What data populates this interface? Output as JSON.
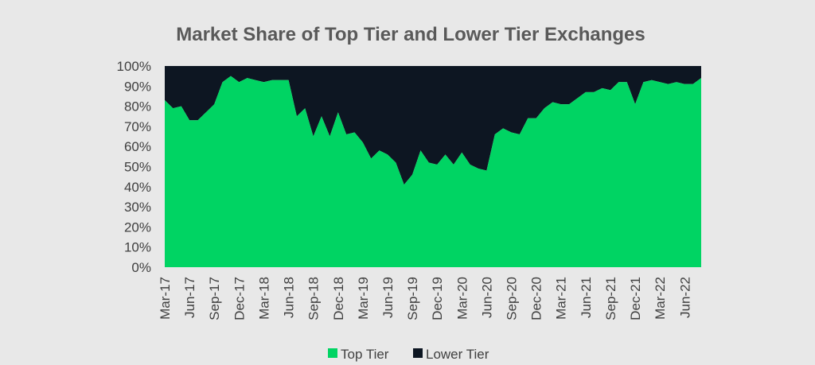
{
  "chart_data": {
    "type": "area",
    "stacked": true,
    "percent": true,
    "title": "Market Share of Top Tier and Lower Tier Exchanges",
    "xlabel": "",
    "ylabel": "",
    "ylim": [
      0,
      100
    ],
    "yticks": [
      "0%",
      "10%",
      "20%",
      "30%",
      "40%",
      "50%",
      "60%",
      "70%",
      "80%",
      "90%",
      "100%"
    ],
    "xtick_labels": [
      "Mar-17",
      "Jun-17",
      "Sep-17",
      "Dec-17",
      "Mar-18",
      "Jun-18",
      "Sep-18",
      "Dec-18",
      "Mar-19",
      "Jun-19",
      "Sep-19",
      "Dec-19",
      "Mar-20",
      "Jun-20",
      "Sep-20",
      "Dec-20",
      "Mar-21",
      "Jun-21",
      "Sep-21",
      "Dec-21",
      "Mar-22",
      "Jun-22"
    ],
    "legend_position": "bottom",
    "grid": false,
    "x": [
      "Mar-17",
      "Apr-17",
      "May-17",
      "Jun-17",
      "Jul-17",
      "Aug-17",
      "Sep-17",
      "Oct-17",
      "Nov-17",
      "Dec-17",
      "Jan-18",
      "Feb-18",
      "Mar-18",
      "Apr-18",
      "May-18",
      "Jun-18",
      "Jul-18",
      "Aug-18",
      "Sep-18",
      "Oct-18",
      "Nov-18",
      "Dec-18",
      "Jan-19",
      "Feb-19",
      "Mar-19",
      "Apr-19",
      "May-19",
      "Jun-19",
      "Jul-19",
      "Aug-19",
      "Sep-19",
      "Oct-19",
      "Nov-19",
      "Dec-19",
      "Jan-20",
      "Feb-20",
      "Mar-20",
      "Apr-20",
      "May-20",
      "Jun-20",
      "Jul-20",
      "Aug-20",
      "Sep-20",
      "Oct-20",
      "Nov-20",
      "Dec-20",
      "Jan-21",
      "Feb-21",
      "Mar-21",
      "Apr-21",
      "May-21",
      "Jun-21",
      "Jul-21",
      "Aug-21",
      "Sep-21",
      "Oct-21",
      "Nov-21",
      "Dec-21",
      "Jan-22",
      "Feb-22",
      "Mar-22",
      "Apr-22",
      "May-22",
      "Jun-22",
      "Jul-22",
      "Aug-22"
    ],
    "series": [
      {
        "name": "Top Tier",
        "color": "#00d463",
        "values": [
          83,
          79,
          80,
          73,
          73,
          77,
          81,
          92,
          95,
          92,
          94,
          93,
          92,
          93,
          93,
          93,
          75,
          79,
          65,
          75,
          65,
          77,
          66,
          67,
          62,
          54,
          58,
          56,
          52,
          41,
          46,
          58,
          52,
          51,
          56,
          51,
          57,
          51,
          49,
          48,
          66,
          69,
          67,
          66,
          74,
          74,
          79,
          82,
          81,
          81,
          84,
          87,
          87,
          89,
          88,
          92,
          92,
          81,
          92,
          93,
          92,
          91,
          92,
          91,
          91,
          94
        ]
      },
      {
        "name": "Lower Tier",
        "color": "#0d1622",
        "values": [
          17,
          21,
          20,
          27,
          27,
          23,
          19,
          8,
          5,
          8,
          6,
          7,
          8,
          7,
          7,
          7,
          25,
          21,
          35,
          25,
          35,
          23,
          34,
          33,
          38,
          46,
          42,
          44,
          48,
          59,
          54,
          42,
          48,
          49,
          44,
          49,
          43,
          49,
          51,
          52,
          34,
          31,
          33,
          34,
          26,
          26,
          21,
          18,
          19,
          19,
          16,
          13,
          13,
          11,
          12,
          8,
          8,
          19,
          8,
          7,
          8,
          9,
          8,
          9,
          9,
          6
        ]
      }
    ]
  }
}
